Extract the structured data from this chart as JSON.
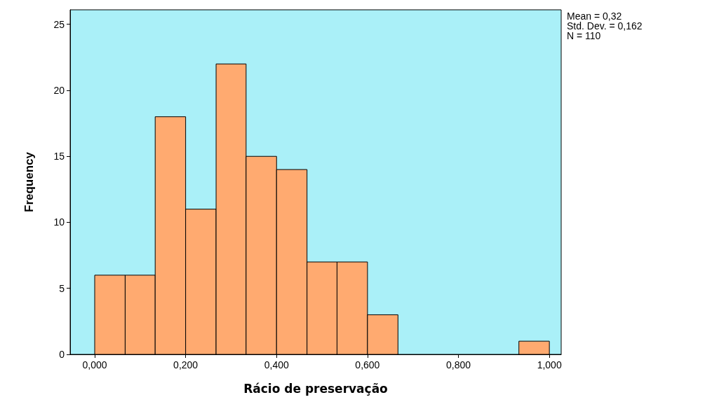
{
  "chart_data": {
    "type": "histogram",
    "xlabel": "Rácio de preservação",
    "ylabel": "Frequency",
    "bins": [
      0,
      0.067,
      0.133,
      0.2,
      0.267,
      0.333,
      0.4,
      0.467,
      0.533,
      0.6,
      0.667,
      0.933,
      1.0
    ],
    "values": [
      6,
      6,
      18,
      11,
      22,
      15,
      14,
      7,
      7,
      3,
      0,
      1
    ],
    "color": "#ffaa70",
    "xlim": [
      -0.054,
      1.026
    ],
    "xticks": [
      {
        "value": 0,
        "label": "0,000"
      },
      {
        "value": 0.2,
        "label": "0,200"
      },
      {
        "value": 0.4,
        "label": "0,400"
      },
      {
        "value": 0.6,
        "label": "0,600"
      },
      {
        "value": 0.8,
        "label": "0,800"
      },
      {
        "value": 1.0,
        "label": "1,000"
      }
    ],
    "ylim": [
      0,
      26.1
    ],
    "yticks": [
      0,
      5,
      10,
      15,
      20,
      25
    ],
    "grid": false,
    "annotations": [
      "Mean = 0,32",
      "Std. Dev. = 0,162",
      "N = 110"
    ]
  }
}
